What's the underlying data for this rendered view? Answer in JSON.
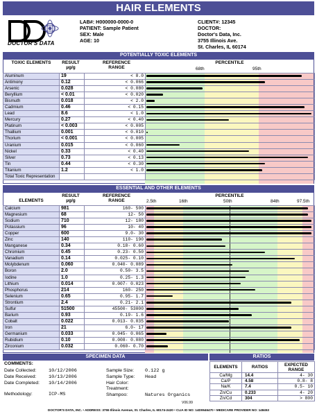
{
  "title": "HAIR ELEMENTS",
  "logo_text": "DOCTOR'S DATA",
  "patient": {
    "lab": "LAB#: H000000-0000-0",
    "patient": "PATIENT: Sample Patient",
    "sex": "SEX: Male",
    "age": "AGE: 10"
  },
  "client": {
    "client": "CLIENT#: 12345",
    "doctor": "DOCTOR:",
    "name": "Doctor's Data, Inc.",
    "addr1": "3755 Illinois Ave.",
    "addr2": "St. Charles, IL 60174"
  },
  "toxic": {
    "section": "POTENTIALLY TOXIC ELEMENTS",
    "h_elem": "TOXIC ELEMENTS",
    "h_result": "RESULT µg/g",
    "h_range": "REFERENCE RANGE",
    "h_pct": "PERCENTILE",
    "p68": "68th",
    "p95": "95th",
    "rows": [
      {
        "name": "Aluminum",
        "result": "19",
        "range": "<  8.0",
        "level": 0.94
      },
      {
        "name": "Antimony",
        "result": "0.12",
        "range": "<  0.066",
        "level": 0.72
      },
      {
        "name": "Arsenic",
        "result": "0.028",
        "range": "<  0.080",
        "level": 0.34
      },
      {
        "name": "Beryllium",
        "result": "< 0.01",
        "range": "<  0.020",
        "level": 0.1
      },
      {
        "name": "Bismuth",
        "result": "0.018",
        "range": "<  2.0",
        "level": 0.05
      },
      {
        "name": "Cadmium",
        "result": "0.46",
        "range": "<  0.15",
        "level": 0.96
      },
      {
        "name": "Lead",
        "result": "8.6",
        "range": "<  1.0",
        "level": 1.0
      },
      {
        "name": "Mercury",
        "result": "0.27",
        "range": "<  0.40",
        "level": 0.5
      },
      {
        "name": "Platinum",
        "result": "< 0.003",
        "range": "<  0.005",
        "level": 0.0
      },
      {
        "name": "Thallium",
        "result": "0.001",
        "range": "<  0.010",
        "level": 0.01
      },
      {
        "name": "Thorium",
        "result": "< 0.001",
        "range": "<  0.005",
        "level": 0.0
      },
      {
        "name": "Uranium",
        "result": "0.015",
        "range": "<  0.060",
        "level": 0.2
      },
      {
        "name": "Nickel",
        "result": "0.33",
        "range": "<  0.40",
        "level": 0.62
      },
      {
        "name": "Silver",
        "result": "0.73",
        "range": "<  0.13",
        "level": 0.98
      },
      {
        "name": "Tin",
        "result": "0.44",
        "range": "<  0.30",
        "level": 0.72
      },
      {
        "name": "Titanium",
        "result": "1.2",
        "range": "<  1.0",
        "level": 0.7
      },
      {
        "name": "Total Toxic Representation",
        "result": "",
        "range": "",
        "level": 0.0
      }
    ]
  },
  "essential": {
    "section": "ESSENTIAL AND OTHER ELEMENTS",
    "h_elem": "ELEMENTS",
    "h_result": "RESULT µg/g",
    "h_range": "REFERENCE RANGE",
    "h_pct": "PERCENTILE",
    "p25": "2.5th",
    "p16": "16th",
    "p50": "50th",
    "p84": "84th",
    "p97": "97.5th",
    "rows": [
      {
        "name": "Calcium",
        "result": "981",
        "range": "160-  500",
        "level": 0.98
      },
      {
        "name": "Magnesium",
        "result": "68",
        "range": "12-   50",
        "level": 0.98
      },
      {
        "name": "Sodium",
        "result": "710",
        "range": "12-  180",
        "level": 1.0
      },
      {
        "name": "Potassium",
        "result": "96",
        "range": "10-   40",
        "level": 1.0
      },
      {
        "name": "Copper",
        "result": "600",
        "range": "9.0-   30",
        "level": 1.0
      },
      {
        "name": "Zinc",
        "result": "140",
        "range": "110-  190",
        "level": 0.46
      },
      {
        "name": "Manganese",
        "result": "0.34",
        "range": "0.18-  0.60",
        "level": 0.48
      },
      {
        "name": "Chromium",
        "result": "0.45",
        "range": "0.23-  0.50",
        "level": 0.72
      },
      {
        "name": "Vanadium",
        "result": "0.14",
        "range": "0.025-  0.10",
        "level": 0.9
      },
      {
        "name": "Molybdenum",
        "result": "0.060",
        "range": "0.040-  0.089",
        "level": 0.52
      },
      {
        "name": "Boron",
        "result": "2.0",
        "range": "0.50-  3.5",
        "level": 0.62
      },
      {
        "name": "Iodine",
        "result": "1.0",
        "range": "0.25-  1.3",
        "level": 0.6
      },
      {
        "name": "Lithium",
        "result": "0.014",
        "range": "0.007-  0.023",
        "level": 0.57
      },
      {
        "name": "Phosphorus",
        "result": "214",
        "range": "160-  250",
        "level": 0.66
      },
      {
        "name": "Selenium",
        "result": "0.65",
        "range": "0.95-  1.7",
        "level": 0.16
      },
      {
        "name": "Strontium",
        "result": "2.4",
        "range": "0.21-  2.1",
        "level": 0.88
      },
      {
        "name": "Sulfur",
        "result": "51500",
        "range": "45500- 53000",
        "level": 0.56
      },
      {
        "name": "Barium",
        "result": "0.93",
        "range": "0.19-  1.6",
        "level": 0.64
      },
      {
        "name": "Cobalt",
        "result": "0.022",
        "range": "0.013-  0.035",
        "level": 0.5
      },
      {
        "name": "Iron",
        "result": "21",
        "range": "6.0-   17",
        "level": 0.88
      },
      {
        "name": "Germanium",
        "result": "0.033",
        "range": "0.045-  0.065",
        "level": 0.12
      },
      {
        "name": "Rubidium",
        "result": "0.10",
        "range": "0.008-  0.080",
        "level": 0.93
      },
      {
        "name": "Zirconium",
        "result": "0.032",
        "range": "0.060-  0.70",
        "level": 0.13
      }
    ]
  },
  "specimen": {
    "section": "SPECIMEN DATA",
    "comments": "COMMENTS:",
    "collected_lbl": "Date Collected:",
    "collected": "10/12/2006",
    "received_lbl": "Date Received:",
    "received": "10/13/2006",
    "completed_lbl": "Date Completed:",
    "completed": "10/14/2006",
    "method_lbl": "Methodology:",
    "method": "ICP-MS",
    "size_lbl": "Sample Size:",
    "size": "0.122 g",
    "type_lbl": "Sample Type:",
    "type": "Head",
    "color_lbl": "Hair Color:",
    "color": "",
    "treat_lbl": "Treatment:",
    "treat": "",
    "shampoo_lbl": "Shampoo:",
    "shampoo": "Natures Organics",
    "version": "V06.99"
  },
  "ratios": {
    "section": "RATIOS",
    "h_elem": "ELEMENTS",
    "h_ratio": "RATIOS",
    "h_exp": "EXPECTED RANGE",
    "rows": [
      {
        "el": "Ca/Mg",
        "ratio": "14.4",
        "range": "4-   30"
      },
      {
        "el": "Ca/P",
        "ratio": "4.58",
        "range": "0.8-   8"
      },
      {
        "el": "Na/K",
        "ratio": "7.4",
        "range": "0.5-   10"
      },
      {
        "el": "Zn/Cu",
        "ratio": "0.233",
        "range": "4-   20"
      },
      {
        "el": "Zn/Cd",
        "ratio": "304",
        "range": "> 800"
      }
    ]
  },
  "footer": "DOCTOR'S DATA, INC. • ADDRESS: 3755 Illinois Avenue, St. Charles, IL 60174-2420 • CLIA ID NO: 14D0646470 • MEDICARE PROVIDER NO: 148453",
  "colors": {
    "header": "#4d4f96",
    "green": "#d6f5c8",
    "yellow": "#fbf7bf",
    "red": "#f8c9c7",
    "panel_blue": "#d9dcf2"
  }
}
